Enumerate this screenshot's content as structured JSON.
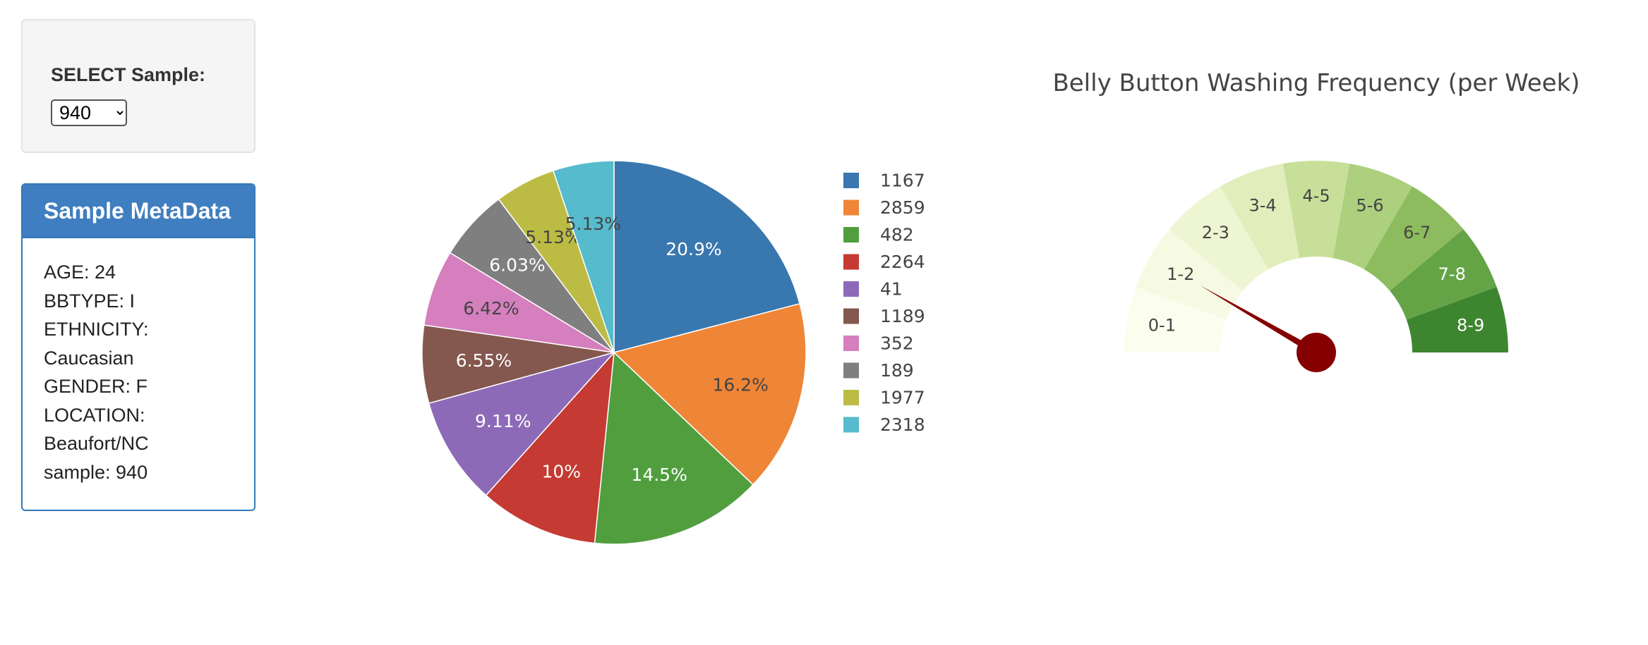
{
  "select": {
    "label": "SELECT Sample:",
    "selected": "940",
    "options": [
      "940"
    ]
  },
  "metadata": {
    "heading": "Sample MetaData",
    "lines": [
      "AGE: 24",
      "BBTYPE: I",
      "ETHNICITY:",
      "Caucasian",
      "GENDER: F",
      "LOCATION:",
      "Beaufort/NC",
      "sample: 940"
    ]
  },
  "chart_data": [
    {
      "type": "pie",
      "title": "",
      "labels": [
        "1167",
        "2859",
        "482",
        "2264",
        "41",
        "1189",
        "352",
        "189",
        "1977",
        "2318"
      ],
      "values": [
        20.9,
        16.2,
        14.5,
        10,
        9.11,
        6.55,
        6.42,
        6.03,
        5.13,
        5.13
      ],
      "value_labels": [
        "20.9%",
        "16.2%",
        "14.5%",
        "10%",
        "9.11%",
        "6.55%",
        "6.42%",
        "6.03%",
        "5.13%",
        "5.13%"
      ],
      "colors": [
        "#3977af",
        "#ef8536",
        "#519e3e",
        "#c53a32",
        "#8d6ab8",
        "#84584e",
        "#d57fbe",
        "#7f7f7f",
        "#bcbc45",
        "#56bbcc"
      ],
      "text_colors": [
        "#ffffff",
        "#444444",
        "#ffffff",
        "#ffffff",
        "#ffffff",
        "#ffffff",
        "#444444",
        "#ffffff",
        "#444444",
        "#444444"
      ],
      "direction": "counterclockwise",
      "legend_position": "right"
    },
    {
      "type": "gauge",
      "title": "Belly Button Washing Frequency (per Week)",
      "range": [
        0,
        9
      ],
      "steps": [
        "0-1",
        "1-2",
        "2-3",
        "3-4",
        "4-5",
        "5-6",
        "6-7",
        "7-8",
        "8-9"
      ],
      "step_colors": [
        "#fbfdee",
        "#f7fae2",
        "#eef5d2",
        "#e1edbb",
        "#c8df99",
        "#acd07e",
        "#8dbc5e",
        "#64a446",
        "#3e8530"
      ],
      "value": 1.5,
      "needle_color": "#850000"
    }
  ]
}
